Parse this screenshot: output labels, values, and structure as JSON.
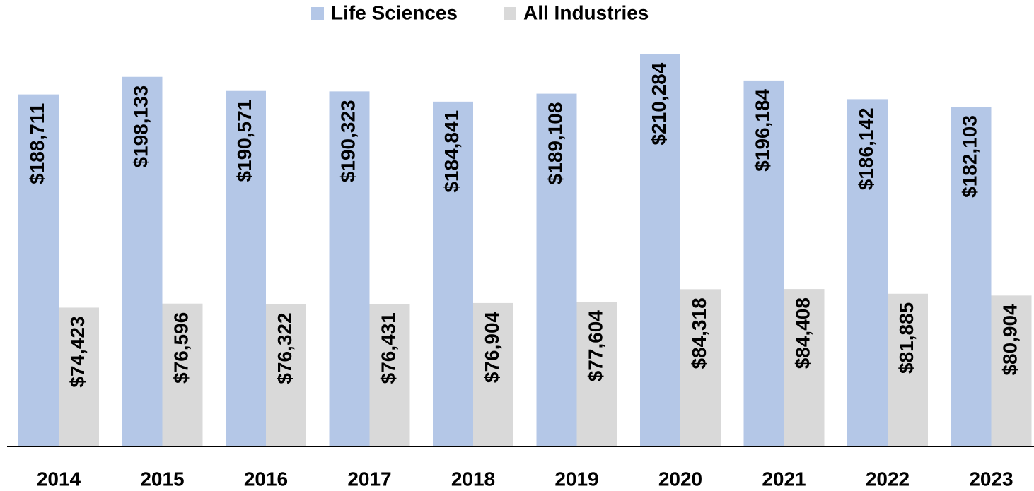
{
  "chart_data": {
    "type": "bar",
    "categories": [
      "2014",
      "2015",
      "2016",
      "2017",
      "2018",
      "2019",
      "2020",
      "2021",
      "2022",
      "2023"
    ],
    "series": [
      {
        "name": "Life Sciences",
        "color": "#b4c7e7",
        "values": [
          188711,
          198133,
          190571,
          190323,
          184841,
          189108,
          210284,
          196184,
          186142,
          182103
        ],
        "value_labels": [
          "$188,711",
          "$198,133",
          "$190,571",
          "$190,323",
          "$184,841",
          "$189,108",
          "$210,284",
          "$196,184",
          "$186,142",
          "$182,103"
        ]
      },
      {
        "name": "All Industries",
        "color": "#d9d9d9",
        "values": [
          74423,
          76596,
          76322,
          76431,
          76904,
          77604,
          84318,
          84408,
          81885,
          80904
        ],
        "value_labels": [
          "$74,423",
          "$76,596",
          "$76,322",
          "$76,431",
          "$76,904",
          "$77,604",
          "$84,318",
          "$84,408",
          "$81,885",
          "$80,904"
        ]
      }
    ],
    "ylim": [
      0,
      220000
    ],
    "legend": "top"
  }
}
